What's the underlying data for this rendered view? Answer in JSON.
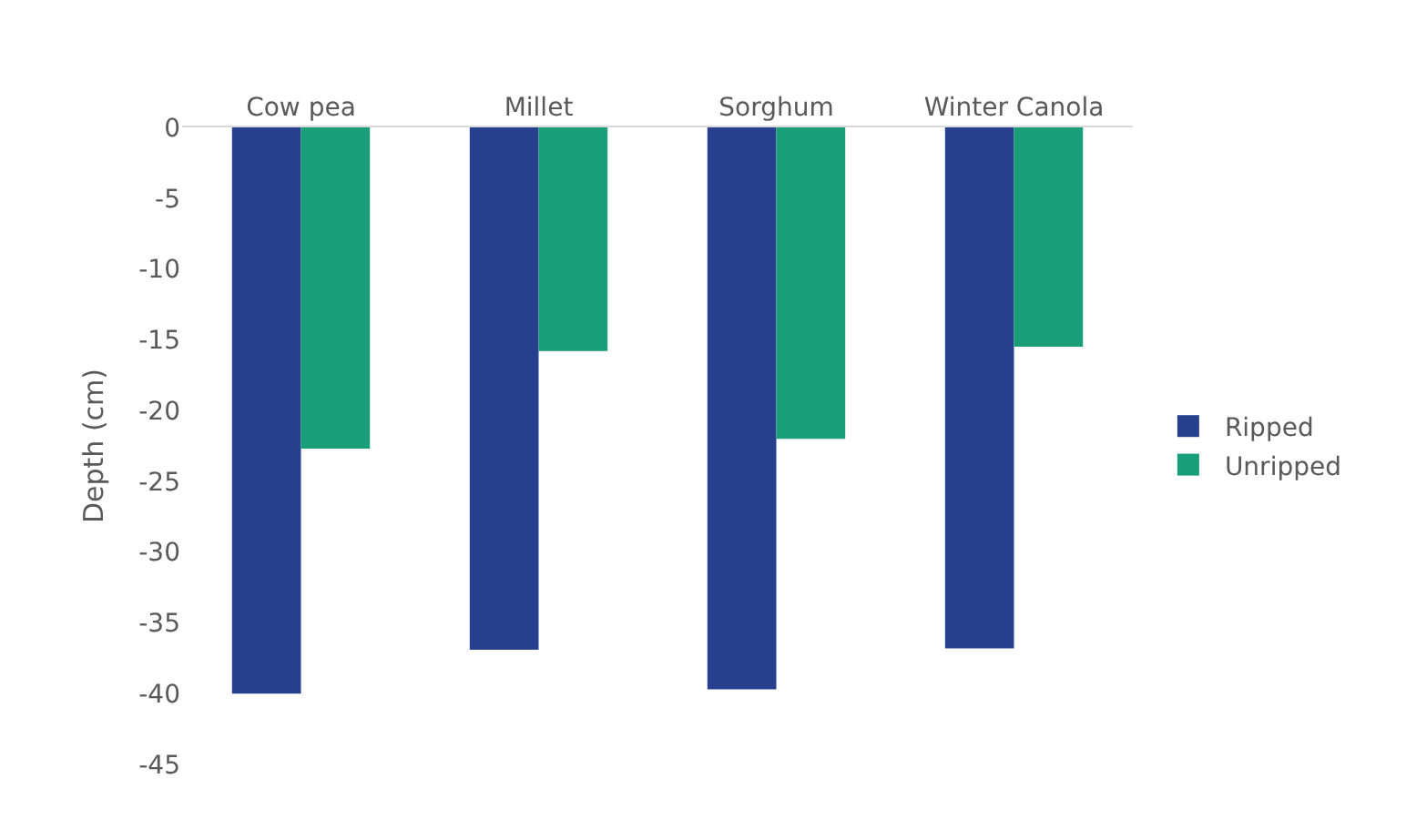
{
  "chart_data": {
    "type": "bar",
    "ylabel": "Depth (cm)",
    "categories": [
      "Cow pea",
      "Millet",
      "Sorghum",
      "Winter Canola"
    ],
    "series": [
      {
        "name": "Ripped",
        "color": "#26408e",
        "values": [
          -40,
          -36.9,
          -39.7,
          -36.8
        ]
      },
      {
        "name": "Unripped",
        "color": "#189e79",
        "values": [
          -22.7,
          -15.8,
          -22.0,
          -15.5
        ]
      }
    ],
    "ylim": [
      -45,
      0
    ],
    "yticks": [
      0,
      -5,
      -10,
      -15,
      -20,
      -25,
      -30,
      -35,
      -40,
      -45
    ],
    "legend": "right"
  }
}
